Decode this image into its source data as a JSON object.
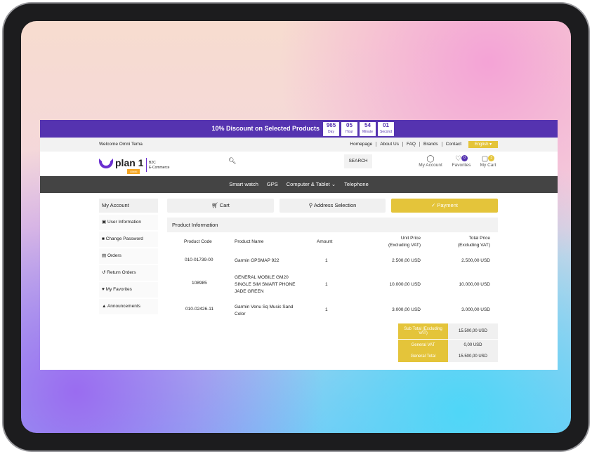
{
  "banner": {
    "text": "10% Discount on Selected Products",
    "countdown": [
      {
        "value": "965",
        "unit": "Day"
      },
      {
        "value": "05",
        "unit": "Hour"
      },
      {
        "value": "54",
        "unit": "Minute"
      },
      {
        "value": "01",
        "unit": "Second"
      }
    ]
  },
  "topbar": {
    "welcome": "Welcome Omni Tema",
    "links": [
      "Homepage",
      "About Us",
      "FAQ",
      "Brands",
      "Contact"
    ],
    "language": "English ▾"
  },
  "header": {
    "logo": "plan 1",
    "logo_badge": "OMNI",
    "logo_tag1": "B2C",
    "logo_tag2": "E-Commerce",
    "search_button": "SEARCH",
    "account": "My Account",
    "favorites": "Favorites",
    "favorites_count": "0",
    "cart": "My Cart",
    "cart_count": "3"
  },
  "nav": [
    "Smart watch",
    "GPS",
    "Computer & Tablet ⌄",
    "Telephone"
  ],
  "sidebar": {
    "title": "My Account",
    "items": [
      {
        "icon": "briefcase-icon",
        "label": "User Information"
      },
      {
        "icon": "lock-icon",
        "label": "Change Password"
      },
      {
        "icon": "cart-icon",
        "label": "Orders"
      },
      {
        "icon": "undo-icon",
        "label": "Return Orders"
      },
      {
        "icon": "heart-icon",
        "label": "My Favorites"
      },
      {
        "icon": "bell-icon",
        "label": "Announcements"
      }
    ]
  },
  "steps": {
    "cart": "Cart",
    "address": "Address Selection",
    "payment": "Payment"
  },
  "product_info": {
    "title": "Product Information",
    "headers": [
      "Product Code",
      "Product Name",
      "Amount",
      "Unit Price",
      "(Excluding VAT)",
      "Total Price",
      "(Excluding VAT)"
    ],
    "rows": [
      {
        "code": "010-01739-00",
        "name": "Garmin GPSMAP 922",
        "amount": "1",
        "unit": "2.500,00 USD",
        "total": "2.500,00 USD"
      },
      {
        "code": "108985",
        "name": "GENERAL MOBILE GM20 SINGLE SIM SMART PHONE JADE GREEN",
        "amount": "1",
        "unit": "10.000,00 USD",
        "total": "10.000,00 USD"
      },
      {
        "code": "010-02426-11",
        "name": "Garmin Venu Sq Music Sand Color",
        "amount": "1",
        "unit": "3.000,00 USD",
        "total": "3.000,00 USD"
      }
    ]
  },
  "totals": [
    {
      "label": "Sub Total (Excluding VAT)",
      "value": "15.500,00 USD"
    },
    {
      "label": "General VAT",
      "value": "0,00 USD"
    },
    {
      "label": "General Total",
      "value": "15.500,00 USD"
    }
  ],
  "colors": {
    "brand": "#5533b0",
    "accent": "#e4c43a",
    "nav": "#444444"
  }
}
